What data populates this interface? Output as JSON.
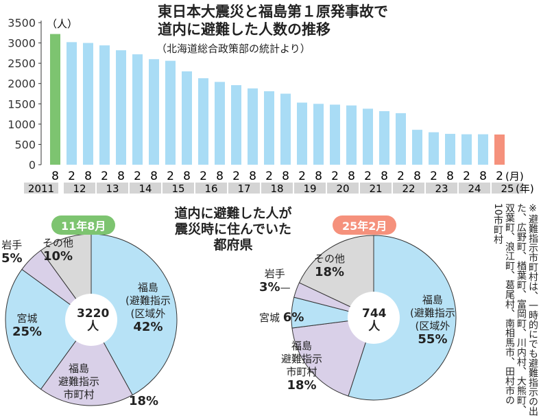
{
  "chart_data": [
    {
      "type": "bar",
      "title": "東日本大震災と福島第１原発事故で道内に避難した人数の推移",
      "subtitle": "（北海道総合政策部の統計より）",
      "ylabel": "（人）",
      "ylim": [
        0,
        3500
      ],
      "yticks": [
        0,
        500,
        1000,
        1500,
        2000,
        2500,
        3000,
        3500
      ],
      "categories": [
        "2011/8",
        "2012/2",
        "2012/8",
        "2013/2",
        "2013/8",
        "2014/2",
        "2014/8",
        "2015/2",
        "2015/8",
        "2016/2",
        "2016/8",
        "2017/2",
        "2017/8",
        "2018/2",
        "2018/8",
        "2019/2",
        "2019/8",
        "2020/2",
        "2020/8",
        "2021/2",
        "2021/8",
        "2022/2",
        "2022/8",
        "2023/2",
        "2023/8",
        "2024/2",
        "2024/8",
        "2025/2"
      ],
      "month_labels": [
        "8",
        "2",
        "8",
        "2",
        "8",
        "2",
        "8",
        "2",
        "8",
        "2",
        "8",
        "2",
        "8",
        "2",
        "8",
        "2",
        "8",
        "2",
        "8",
        "2",
        "8",
        "2",
        "8",
        "2",
        "8",
        "2",
        "8",
        "2"
      ],
      "month_unit": "(月)",
      "year_unit": "(年)",
      "year_labels": [
        "2011",
        "12",
        "13",
        "14",
        "15",
        "16",
        "17",
        "18",
        "19",
        "20",
        "21",
        "22",
        "23",
        "24",
        "25"
      ],
      "values": [
        3220,
        3020,
        3000,
        2940,
        2820,
        2720,
        2600,
        2560,
        2300,
        2130,
        2040,
        1960,
        1880,
        1810,
        1750,
        1530,
        1500,
        1480,
        1460,
        1380,
        1320,
        1270,
        860,
        800,
        760,
        750,
        750,
        744
      ],
      "colors": {
        "first": "#7dc470",
        "normal": "#a9dcf5",
        "last": "#f5917c"
      }
    },
    {
      "type": "pie",
      "title": "道内に避難した人が震災時に住んでいた都府県",
      "badge": "11年8月",
      "center": "3220",
      "center_unit": "人",
      "slices": [
        {
          "label": "福島（避難指示区域外",
          "value": 42,
          "color": "#b7e2f6"
        },
        {
          "label": "福島（避難指示市町村",
          "value": 18,
          "color": "#d9d0e8"
        },
        {
          "label": "宮城",
          "value": 25,
          "color": "#b7e2f6"
        },
        {
          "label": "岩手",
          "value": 5,
          "color": "#d9d0e8"
        },
        {
          "label": "その他",
          "value": 10,
          "color": "#d9d9d9"
        }
      ]
    },
    {
      "type": "pie",
      "badge": "25年2月",
      "center": "744",
      "center_unit": "人",
      "slices": [
        {
          "label": "福島（避難指示区域外",
          "value": 55,
          "color": "#b7e2f6"
        },
        {
          "label": "福島（避難指示市町村",
          "value": 18,
          "color": "#d9d0e8"
        },
        {
          "label": "宮城",
          "value": 6,
          "color": "#b7e2f6"
        },
        {
          "label": "岩手",
          "value": 3,
          "color": "#d9d0e8"
        },
        {
          "label": "その他",
          "value": 18,
          "color": "#d9d9d9"
        }
      ]
    }
  ],
  "labels": {
    "fukushima": "福島",
    "outside": "避難指示",
    "outside2": "区域外",
    "municipal": "避難指示",
    "municipal2": "市町村",
    "miyagi": "宮城",
    "iwate": "岩手",
    "other": "その他",
    "l42": "42%",
    "l18": "18%",
    "l25": "25%",
    "l5": "5%",
    "l10": "10%",
    "r55": "55%",
    "r18a": "18%",
    "r6": "6%",
    "r3": "3%",
    "r18b": "18%"
  },
  "note": "※避難指示市町村は、一時的にでも避難指示の出た、広野町、楢葉町、富岡町、川内村、大熊町、双葉町、浪江町、葛尾村、南相馬市、田村市の10市町村"
}
